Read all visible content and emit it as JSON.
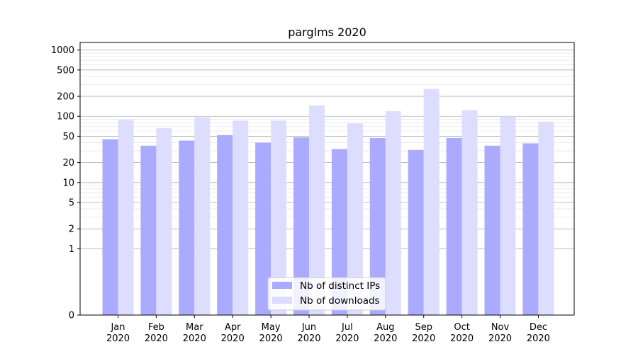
{
  "chart_data": {
    "type": "bar",
    "title": "parglms 2020",
    "categories": [
      "Jan\n2020",
      "Feb\n2020",
      "Mar\n2020",
      "Apr\n2020",
      "May\n2020",
      "Jun\n2020",
      "Jul\n2020",
      "Aug\n2020",
      "Sep\n2020",
      "Oct\n2020",
      "Nov\n2020",
      "Dec\n2020"
    ],
    "series": [
      {
        "name": "Nb of distinct IPs",
        "color": "#aaaaff",
        "values": [
          45,
          36,
          43,
          52,
          40,
          48,
          32,
          47,
          31,
          47,
          36,
          39
        ]
      },
      {
        "name": "Nb of downloads",
        "color": "#ddddff",
        "values": [
          88,
          66,
          97,
          86,
          86,
          146,
          78,
          119,
          259,
          124,
          100,
          83
        ]
      }
    ],
    "yscale": "symlog",
    "ylim": [
      0,
      1300
    ],
    "yticks": [
      0,
      1,
      2,
      5,
      10,
      20,
      50,
      100,
      200,
      500,
      1000
    ],
    "ytick_labels": [
      "0",
      "1",
      "2",
      "5",
      "10",
      "20",
      "50",
      "100",
      "200",
      "500",
      "1000"
    ],
    "grid": true,
    "legend_position": "bottom-center",
    "xlabel": "",
    "ylabel": ""
  }
}
